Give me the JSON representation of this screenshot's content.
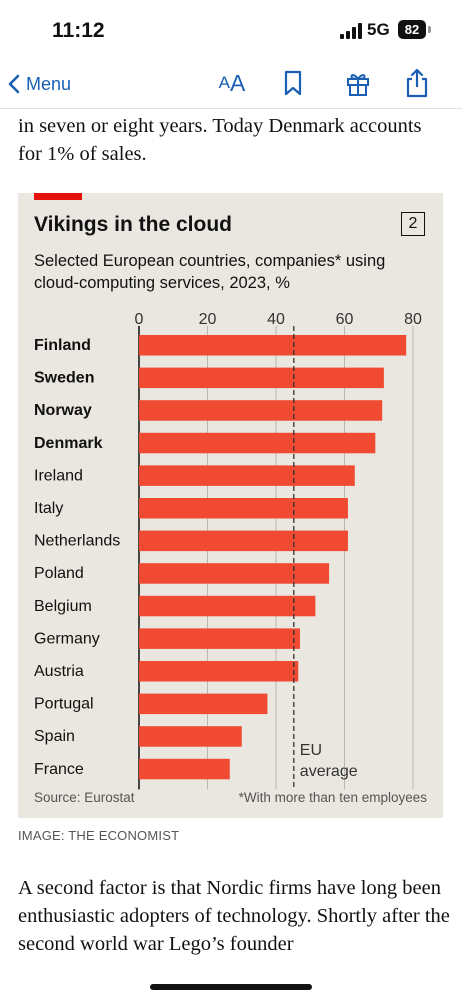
{
  "status_bar": {
    "time": "11:12",
    "network": "5G",
    "battery": "82"
  },
  "toolbar": {
    "back_label": "Menu",
    "text_size_small": "A",
    "text_size_large": "A"
  },
  "article": {
    "text_top": "in seven or eight years. Today Denmark accounts for 1% of sales.",
    "image_caption": "IMAGE: THE ECONOMIST",
    "text_bottom": "A second factor is that Nordic firms have long been enthusiastic adopters of technology. Shortly after the second world war Lego’s founder"
  },
  "colors": {
    "accent": "#e3120b",
    "bar": "#f04a32",
    "chart_bg": "#e9e7df",
    "link": "#1a5fb4"
  },
  "chart_data": {
    "type": "bar",
    "orientation": "horizontal",
    "title": "Vikings in the cloud",
    "chart_number": "2",
    "subtitle": "Selected European countries, companies* using cloud-computing services, 2023, %",
    "categories": [
      "Finland",
      "Sweden",
      "Norway",
      "Denmark",
      "Ireland",
      "Italy",
      "Netherlands",
      "Poland",
      "Belgium",
      "Germany",
      "Austria",
      "Portugal",
      "Spain",
      "France"
    ],
    "bold_categories": [
      "Finland",
      "Sweden",
      "Norway",
      "Denmark"
    ],
    "values": [
      78,
      71.5,
      71,
      69,
      63,
      61,
      61,
      55.5,
      51.5,
      47,
      46.5,
      37.5,
      30,
      26.5
    ],
    "xlim": [
      0,
      80
    ],
    "xticks": [
      "0",
      "20",
      "40",
      "60",
      "80"
    ],
    "reference_line": {
      "value": 45.2,
      "label_line1": "EU",
      "label_line2": "average"
    },
    "source": "Source: Eurostat",
    "footnote": "*With more than ten employees"
  }
}
